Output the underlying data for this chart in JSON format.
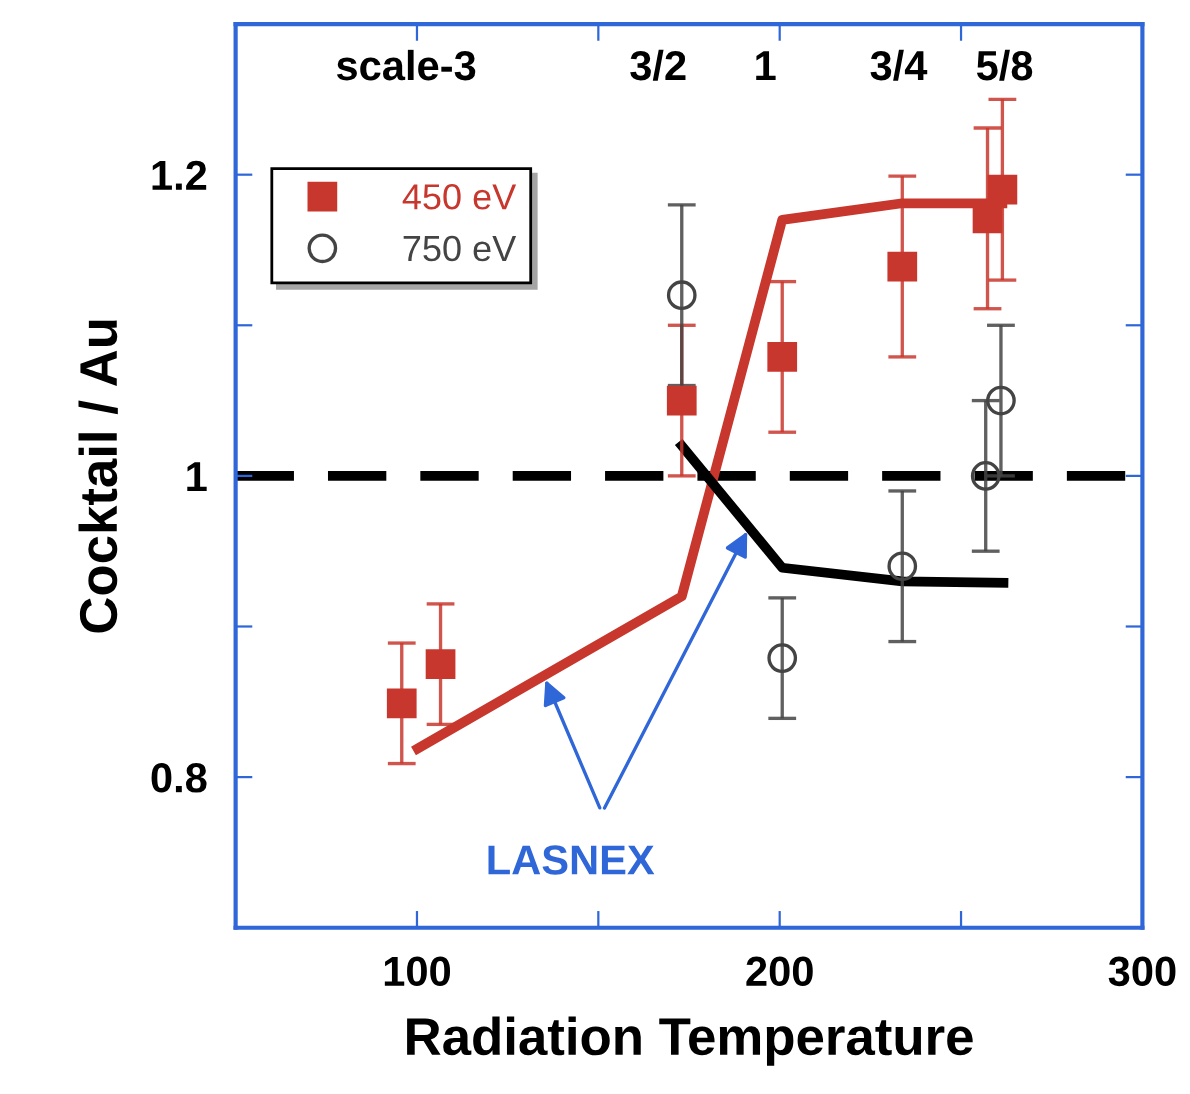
{
  "chart_data": {
    "type": "scatter",
    "xlabel": "Radiation Temperature",
    "ylabel": "Cocktail / Au",
    "xlim": [
      50,
      300
    ],
    "ylim": [
      0.7,
      1.3
    ],
    "xticks": [
      100,
      {
        "value": 150,
        "label": null
      },
      200,
      {
        "value": 250,
        "label": null
      },
      300
    ],
    "yticks": [
      0.8,
      {
        "value": 0.9,
        "label": null
      },
      1,
      {
        "value": 1.1,
        "label": null
      },
      1.2
    ],
    "series": [
      {
        "name": "450 eV",
        "color": "#c8372d",
        "marker": "square",
        "x": [
          95.8,
          106.5,
          173,
          200.7,
          233.8,
          257.3,
          261.4
        ],
        "values": [
          0.849,
          0.875,
          1.05,
          1.079,
          1.139,
          1.171,
          1.19
        ],
        "errors": [
          0.04,
          0.04,
          0.05,
          0.05,
          0.06,
          0.06,
          0.06
        ]
      },
      {
        "name": "750 eV",
        "color": "#444444",
        "marker": "circle",
        "x": [
          173,
          200.7,
          233.8,
          256.8,
          261
        ],
        "values": [
          1.12,
          0.879,
          0.94,
          1.0,
          1.05
        ],
        "errors": [
          0.06,
          0.04,
          0.05,
          0.05,
          0.05
        ]
      },
      {
        "type": "line",
        "color": "#c8372d",
        "x": [
          100.2,
          173,
          200.7,
          233.8,
          261.4
        ],
        "values": [
          0.819,
          0.92,
          1.17,
          1.181,
          1.181
        ]
      },
      {
        "type": "line",
        "color": "#000000",
        "x": [
          173,
          200.7,
          233.8,
          261.7
        ],
        "values": [
          1.02,
          0.939,
          0.93,
          0.929
        ]
      }
    ],
    "ref_lines": [
      {
        "axis": "y",
        "value": 1,
        "color": "#000000",
        "line_style": "dashed"
      }
    ],
    "annotations": [
      "scale-3",
      "3/2",
      "1",
      "3/4",
      "5/8",
      {
        "text": "LASNEX",
        "x": 134.8,
        "y": 0.868
      }
    ],
    "legend": "top left",
    "grid": false
  }
}
